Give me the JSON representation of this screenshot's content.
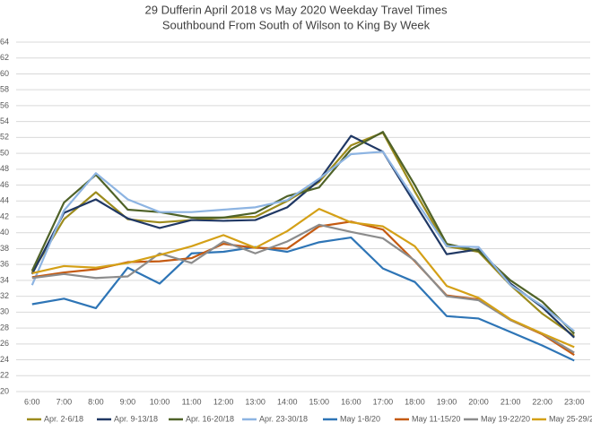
{
  "chart_data": {
    "type": "line",
    "title": "29 Dufferin April 2018 vs May 2020 Weekday Travel Times",
    "subtitle": "Southbound From South of Wilson to King By Week",
    "categories": [
      "6:00",
      "7:00",
      "8:00",
      "9:00",
      "10:00",
      "11:00",
      "12:00",
      "13:00",
      "14:00",
      "15:00",
      "16:00",
      "17:00",
      "18:00",
      "19:00",
      "20:00",
      "21:00",
      "22:00",
      "23:00"
    ],
    "ylim": [
      20,
      64
    ],
    "yticks": [
      20,
      22,
      24,
      26,
      28,
      30,
      32,
      34,
      36,
      38,
      40,
      42,
      44,
      46,
      48,
      50,
      52,
      54,
      56,
      58,
      60,
      62,
      64
    ],
    "grid": true,
    "legend": "bottom",
    "series": [
      {
        "name": "Apr. 2-6/18",
        "color": "#9c8b1c",
        "values": [
          35.0,
          41.7,
          45.1,
          41.7,
          41.3,
          41.6,
          41.9,
          42.0,
          44.0,
          46.4,
          51.0,
          52.6,
          45.2,
          38.3,
          37.6,
          33.4,
          29.8,
          27.0
        ]
      },
      {
        "name": "Apr. 9-13/18",
        "color": "#203864",
        "values": [
          34.8,
          42.5,
          44.2,
          41.8,
          40.6,
          41.6,
          41.5,
          41.6,
          43.2,
          46.6,
          52.2,
          50.2,
          43.7,
          37.3,
          37.9,
          33.6,
          30.6,
          26.8
        ]
      },
      {
        "name": "Apr. 16-20/18",
        "color": "#4f6228",
        "values": [
          35.2,
          43.8,
          47.3,
          42.9,
          42.6,
          41.9,
          41.9,
          42.5,
          44.6,
          45.7,
          50.5,
          52.7,
          46.0,
          38.6,
          37.7,
          34.0,
          31.3,
          27.3
        ]
      },
      {
        "name": "Apr. 23-30/18",
        "color": "#8db4e2",
        "values": [
          33.4,
          42.8,
          47.5,
          44.2,
          42.6,
          42.6,
          42.9,
          43.2,
          44.1,
          46.8,
          49.9,
          50.2,
          44.2,
          38.3,
          38.2,
          33.4,
          30.8,
          27.6
        ]
      },
      {
        "name": "May 1-8/20",
        "color": "#2e75b6",
        "values": [
          31.0,
          31.7,
          30.5,
          35.6,
          33.6,
          37.4,
          37.6,
          38.2,
          37.6,
          38.8,
          39.4,
          35.5,
          33.8,
          29.5,
          29.2,
          27.5,
          25.8,
          23.9
        ]
      },
      {
        "name": "May 11-15/20",
        "color": "#c55a11",
        "values": [
          34.4,
          35.0,
          35.4,
          36.3,
          36.4,
          36.8,
          38.6,
          38.1,
          38.0,
          40.8,
          41.4,
          40.4,
          36.4,
          32.1,
          31.6,
          29.0,
          27.2,
          24.6
        ]
      },
      {
        "name": "May 19-22/20",
        "color": "#8c8c8c",
        "values": [
          34.3,
          34.8,
          34.3,
          34.5,
          37.4,
          36.2,
          38.9,
          37.4,
          38.9,
          41.0,
          40.1,
          39.3,
          36.5,
          32.0,
          31.5,
          29.0,
          27.3,
          24.9
        ]
      },
      {
        "name": "May 25-29/20",
        "color": "#d4a017",
        "values": [
          34.9,
          35.8,
          35.6,
          36.2,
          37.2,
          38.3,
          39.7,
          38.1,
          40.2,
          43.0,
          41.3,
          40.8,
          38.3,
          33.3,
          31.8,
          29.1,
          27.3,
          25.6
        ]
      }
    ]
  }
}
